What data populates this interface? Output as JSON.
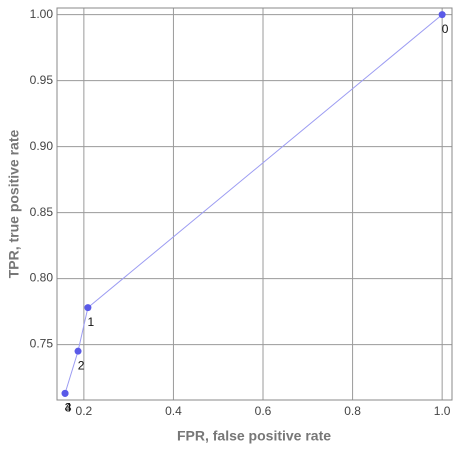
{
  "chart_data": {
    "type": "line",
    "x_label": "FPR, false positive rate",
    "y_label": "TPR, true positive rate",
    "x": [
      1.0,
      0.209,
      0.187,
      0.158,
      0.158
    ],
    "values": [
      1.0,
      0.778,
      0.745,
      0.713,
      0.713
    ],
    "point_labels": [
      "0",
      "1",
      "2",
      "3",
      "4"
    ],
    "color": "#5a5ae8",
    "line_color": "#9c9cf2",
    "xlim": [
      0.14,
      1.022
    ],
    "ylim": [
      0.708,
      1.005
    ],
    "xticks": [
      0.2,
      0.4,
      0.6,
      0.8,
      {
        "value": 1,
        "label": "1.0"
      }
    ],
    "yticks": [
      0.75,
      {
        "value": 0.8,
        "label": "0.80"
      },
      0.85,
      {
        "value": 0.9,
        "label": "0.90"
      },
      0.95,
      {
        "value": 1,
        "label": "1.00"
      }
    ],
    "grid": true
  }
}
